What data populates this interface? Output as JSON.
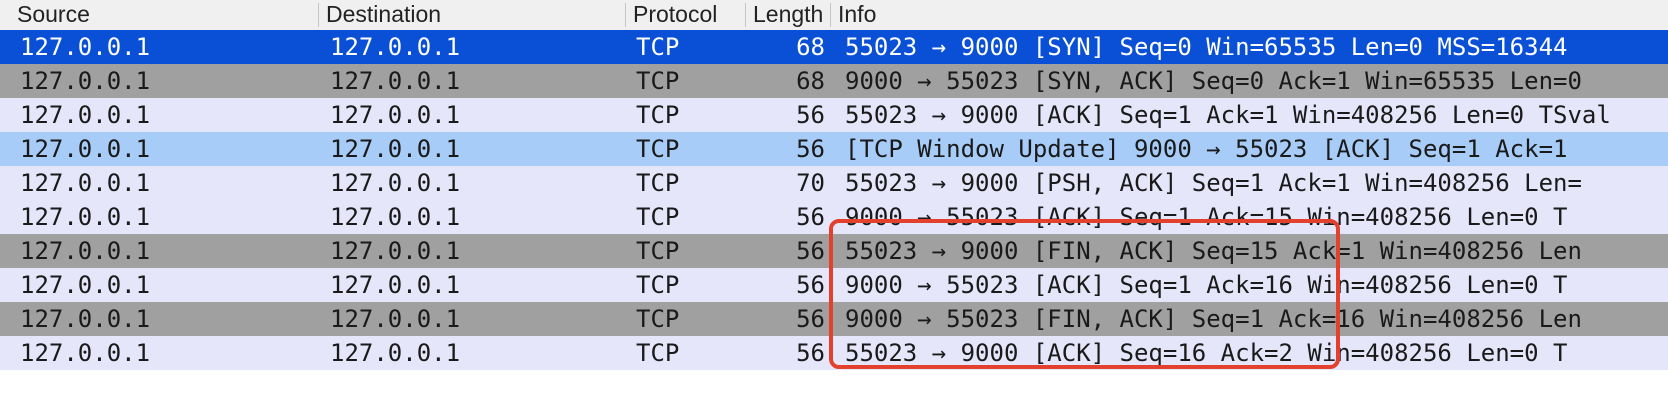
{
  "columns": [
    {
      "label": "Source"
    },
    {
      "label": "Destination"
    },
    {
      "label": "Protocol"
    },
    {
      "label": "Length"
    },
    {
      "label": "Info"
    }
  ],
  "rows": [
    {
      "source": "127.0.0.1",
      "destination": "127.0.0.1",
      "protocol": "TCP",
      "length": "68",
      "info": "55023 → 9000 [SYN] Seq=0 Win=65535 Len=0 MSS=16344",
      "style": "selected"
    },
    {
      "source": "127.0.0.1",
      "destination": "127.0.0.1",
      "protocol": "TCP",
      "length": "68",
      "info": "9000 → 55023 [SYN, ACK] Seq=0 Ack=1 Win=65535 Len=0",
      "style": "gray"
    },
    {
      "source": "127.0.0.1",
      "destination": "127.0.0.1",
      "protocol": "TCP",
      "length": "56",
      "info": "55023 → 9000 [ACK] Seq=1 Ack=1 Win=408256 Len=0 TSval",
      "style": "lavender"
    },
    {
      "source": "127.0.0.1",
      "destination": "127.0.0.1",
      "protocol": "TCP",
      "length": "56",
      "info": "[TCP Window Update] 9000 → 55023 [ACK] Seq=1 Ack=1",
      "style": "light-blue"
    },
    {
      "source": "127.0.0.1",
      "destination": "127.0.0.1",
      "protocol": "TCP",
      "length": "70",
      "info": "55023 → 9000 [PSH, ACK] Seq=1 Ack=1 Win=408256 Len=",
      "style": "lavender"
    },
    {
      "source": "127.0.0.1",
      "destination": "127.0.0.1",
      "protocol": "TCP",
      "length": "56",
      "info": "9000 → 55023 [ACK] Seq=1 Ack=15 Win=408256 Len=0 T",
      "style": "lavender"
    },
    {
      "source": "127.0.0.1",
      "destination": "127.0.0.1",
      "protocol": "TCP",
      "length": "56",
      "info": "55023 → 9000 [FIN, ACK] Seq=15 Ack=1 Win=408256 Len",
      "style": "gray"
    },
    {
      "source": "127.0.0.1",
      "destination": "127.0.0.1",
      "protocol": "TCP",
      "length": "56",
      "info": "9000 → 55023 [ACK] Seq=1 Ack=16 Win=408256 Len=0 T",
      "style": "lavender"
    },
    {
      "source": "127.0.0.1",
      "destination": "127.0.0.1",
      "protocol": "TCP",
      "length": "56",
      "info": "9000 → 55023 [FIN, ACK] Seq=1 Ack=16 Win=408256 Len",
      "style": "gray"
    },
    {
      "source": "127.0.0.1",
      "destination": "127.0.0.1",
      "protocol": "TCP",
      "length": "56",
      "info": "55023 → 9000 [ACK] Seq=16 Ack=2 Win=408256 Len=0 T",
      "style": "lavender"
    }
  ],
  "colors": {
    "selected": "#0a50d6",
    "gray": "#a0a0a0",
    "lavender": "#e6e6fb",
    "light-blue": "#a6ccf7",
    "annotation": "#e2412e"
  }
}
